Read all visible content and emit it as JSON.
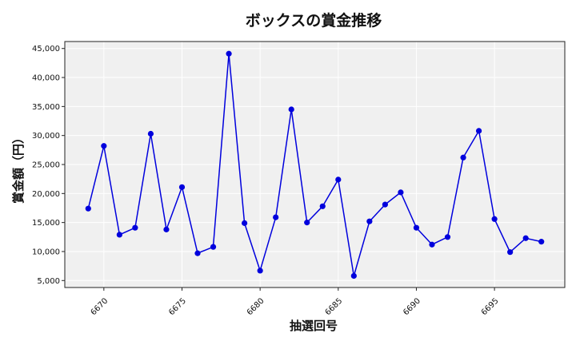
{
  "chart_data": {
    "type": "line",
    "title": "ボックスの賞金推移",
    "xlabel": "抽選回号",
    "ylabel": "賞金額（円）",
    "x": [
      6669,
      6670,
      6671,
      6672,
      6673,
      6674,
      6675,
      6676,
      6677,
      6678,
      6679,
      6680,
      6681,
      6682,
      6683,
      6684,
      6685,
      6686,
      6687,
      6688,
      6689,
      6690,
      6691,
      6692,
      6693,
      6694,
      6695,
      6696,
      6697,
      6698
    ],
    "series": [
      {
        "values": [
          17400,
          28200,
          12900,
          14100,
          30300,
          13800,
          21100,
          9700,
          10800,
          44100,
          14900,
          6700,
          15900,
          34500,
          15000,
          17800,
          22400,
          5800,
          15200,
          18100,
          20200,
          14100,
          11200,
          12500,
          26200,
          30800,
          15600,
          9900,
          12300,
          11700
        ]
      }
    ],
    "xlim": [
      6667.5,
      6699.5
    ],
    "ylim": [
      3800,
      46200
    ],
    "xticks": [
      "6670",
      "6675",
      "6680",
      "6685",
      "6690",
      "6695"
    ],
    "yticks": [
      "5,000",
      "10,000",
      "15,000",
      "20,000",
      "25,000",
      "30,000",
      "35,000",
      "40,000",
      "45,000"
    ],
    "ytick_values": [
      5000,
      10000,
      15000,
      20000,
      25000,
      30000,
      35000,
      40000,
      45000
    ],
    "xtick_values": [
      6670,
      6675,
      6680,
      6685,
      6690,
      6695
    ],
    "grid": true,
    "legend": "none",
    "colors": {
      "line": "#0000dd",
      "marker": "#0000dd",
      "plot_bg": "#f0f0f0",
      "grid": "#ffffff"
    }
  }
}
